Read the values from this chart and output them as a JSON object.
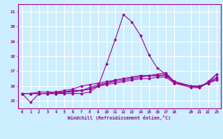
{
  "xlabel": "Windchill (Refroidissement éolien,°C)",
  "bg_color": "#cceeff",
  "line_color": "#990099",
  "grid_color": "#ffffff",
  "xmin": -0.5,
  "xmax": 23.5,
  "ymin": 14.5,
  "ymax": 21.5,
  "yticks": [
    15,
    16,
    17,
    18,
    19,
    20,
    21
  ],
  "xticks": [
    0,
    1,
    2,
    3,
    4,
    5,
    6,
    7,
    8,
    9,
    10,
    11,
    12,
    13,
    14,
    15,
    16,
    17,
    18,
    20,
    21,
    22,
    23
  ],
  "x_values": [
    0,
    1,
    2,
    3,
    4,
    5,
    6,
    7,
    8,
    9,
    10,
    11,
    12,
    13,
    14,
    15,
    16,
    17,
    18,
    20,
    21,
    22,
    23
  ],
  "lines": [
    [
      15.5,
      14.9,
      15.5,
      15.5,
      15.5,
      15.5,
      15.5,
      15.5,
      15.6,
      16.0,
      17.5,
      19.1,
      20.8,
      20.3,
      19.4,
      18.1,
      17.2,
      16.8,
      16.2,
      15.9,
      15.9,
      16.3,
      16.8
    ],
    [
      15.5,
      15.5,
      15.5,
      15.5,
      15.5,
      15.6,
      15.6,
      15.7,
      15.8,
      16.0,
      16.2,
      16.4,
      16.5,
      16.6,
      16.7,
      16.7,
      16.8,
      16.9,
      16.3,
      16.0,
      16.0,
      16.2,
      16.4
    ],
    [
      15.5,
      15.5,
      15.6,
      15.6,
      15.6,
      15.7,
      15.8,
      16.0,
      16.1,
      16.2,
      16.3,
      16.4,
      16.5,
      16.6,
      16.7,
      16.7,
      16.7,
      16.7,
      16.3,
      16.0,
      15.9,
      16.2,
      16.8
    ],
    [
      15.5,
      15.5,
      15.5,
      15.5,
      15.6,
      15.6,
      15.7,
      15.7,
      15.8,
      16.0,
      16.1,
      16.2,
      16.3,
      16.4,
      16.5,
      16.5,
      16.6,
      16.6,
      16.2,
      16.0,
      16.0,
      16.2,
      16.5
    ],
    [
      15.5,
      15.5,
      15.5,
      15.5,
      15.5,
      15.6,
      15.7,
      15.7,
      15.9,
      16.1,
      16.2,
      16.3,
      16.4,
      16.5,
      16.6,
      16.7,
      16.7,
      16.8,
      16.3,
      16.0,
      16.0,
      16.2,
      16.6
    ]
  ]
}
